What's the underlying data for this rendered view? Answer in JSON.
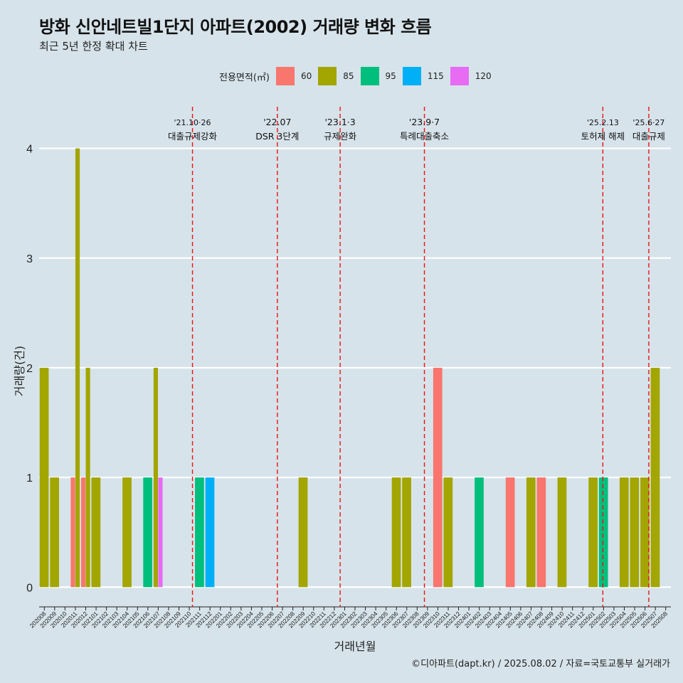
{
  "title": "방화 신안네트빌1단지 아파트(2002) 거래량 변화 흐름",
  "subtitle": "최근 5년 한정 확대 차트",
  "caption": "©디아파트(dapt.kr) / 2025.08.02 / 자료=국토교통부 실거래가",
  "colors": {
    "background": "#d6e3ea",
    "grid": "#ffffff",
    "event_line": "#ee1111",
    "60": "#f8766d",
    "85": "#a3a500",
    "95": "#00bf7d",
    "115": "#00b0f6",
    "120": "#e76bf3"
  },
  "legend": {
    "title": "전용면적(㎡)",
    "items": [
      "60",
      "85",
      "95",
      "115",
      "120"
    ]
  },
  "chart_data": {
    "type": "bar",
    "stacked": false,
    "dodge": true,
    "xlabel": "거래년월",
    "ylabel": "거래량(건)",
    "ylim": [
      -0.18,
      4.38
    ],
    "yticks": [
      0,
      1,
      2,
      3,
      4
    ],
    "grid": true,
    "legend_position": "top",
    "categories": [
      "202008",
      "202009",
      "202010",
      "202011",
      "202012",
      "202101",
      "202102",
      "202103",
      "202104",
      "202105",
      "202106",
      "202107",
      "202108",
      "202109",
      "202110",
      "202111",
      "202112",
      "202201",
      "202202",
      "202203",
      "202204",
      "202205",
      "202206",
      "202207",
      "202208",
      "202209",
      "202210",
      "202211",
      "202212",
      "202301",
      "202302",
      "202303",
      "202304",
      "202305",
      "202306",
      "202307",
      "202308",
      "202309",
      "202310",
      "202311",
      "202312",
      "202401",
      "202402",
      "202403",
      "202404",
      "202405",
      "202406",
      "202407",
      "202408",
      "202409",
      "202410",
      "202411",
      "202412",
      "202501",
      "202502",
      "202503",
      "202504",
      "202505",
      "202506",
      "202507",
      "202508"
    ],
    "bars": [
      {
        "month": "202008",
        "area": "85",
        "value": 2
      },
      {
        "month": "202009",
        "area": "85",
        "value": 1
      },
      {
        "month": "202011",
        "area": "60",
        "value": 1
      },
      {
        "month": "202011",
        "area": "85",
        "value": 4
      },
      {
        "month": "202012",
        "area": "60",
        "value": 1
      },
      {
        "month": "202012",
        "area": "85",
        "value": 2
      },
      {
        "month": "202101",
        "area": "85",
        "value": 1
      },
      {
        "month": "202104",
        "area": "85",
        "value": 1
      },
      {
        "month": "202106",
        "area": "95",
        "value": 1
      },
      {
        "month": "202107",
        "area": "85",
        "value": 2
      },
      {
        "month": "202107",
        "area": "120",
        "value": 1
      },
      {
        "month": "202111",
        "area": "95",
        "value": 1
      },
      {
        "month": "202112",
        "area": "115",
        "value": 1
      },
      {
        "month": "202209",
        "area": "85",
        "value": 1
      },
      {
        "month": "202306",
        "area": "85",
        "value": 1
      },
      {
        "month": "202307",
        "area": "85",
        "value": 1
      },
      {
        "month": "202310",
        "area": "60",
        "value": 2
      },
      {
        "month": "202311",
        "area": "85",
        "value": 1
      },
      {
        "month": "202402",
        "area": "95",
        "value": 1
      },
      {
        "month": "202405",
        "area": "60",
        "value": 1
      },
      {
        "month": "202407",
        "area": "85",
        "value": 1
      },
      {
        "month": "202408",
        "area": "60",
        "value": 1
      },
      {
        "month": "202410",
        "area": "85",
        "value": 1
      },
      {
        "month": "202501",
        "area": "85",
        "value": 1
      },
      {
        "month": "202502",
        "area": "95",
        "value": 1
      },
      {
        "month": "202504",
        "area": "85",
        "value": 1
      },
      {
        "month": "202505",
        "area": "85",
        "value": 1
      },
      {
        "month": "202506",
        "area": "85",
        "value": 1
      },
      {
        "month": "202507",
        "area": "85",
        "value": 2
      }
    ],
    "events": [
      {
        "x": "2021-10-26",
        "date_label": "'21.10·26",
        "label": "대출규제강화"
      },
      {
        "x": "2022-07-01",
        "date_label": "'22.07",
        "label": "DSR 3단계"
      },
      {
        "x": "2023-01-03",
        "date_label": "'23.1·3",
        "label": "규제완화"
      },
      {
        "x": "2023-09-07",
        "date_label": "'23.9·7",
        "label": "특례대출축소"
      },
      {
        "x": "2025-02-13",
        "date_label": "'25.2.13",
        "label": "토허제 해제"
      },
      {
        "x": "2025-06-27",
        "date_label": "'25.6·27",
        "label": "대출규제"
      }
    ]
  }
}
